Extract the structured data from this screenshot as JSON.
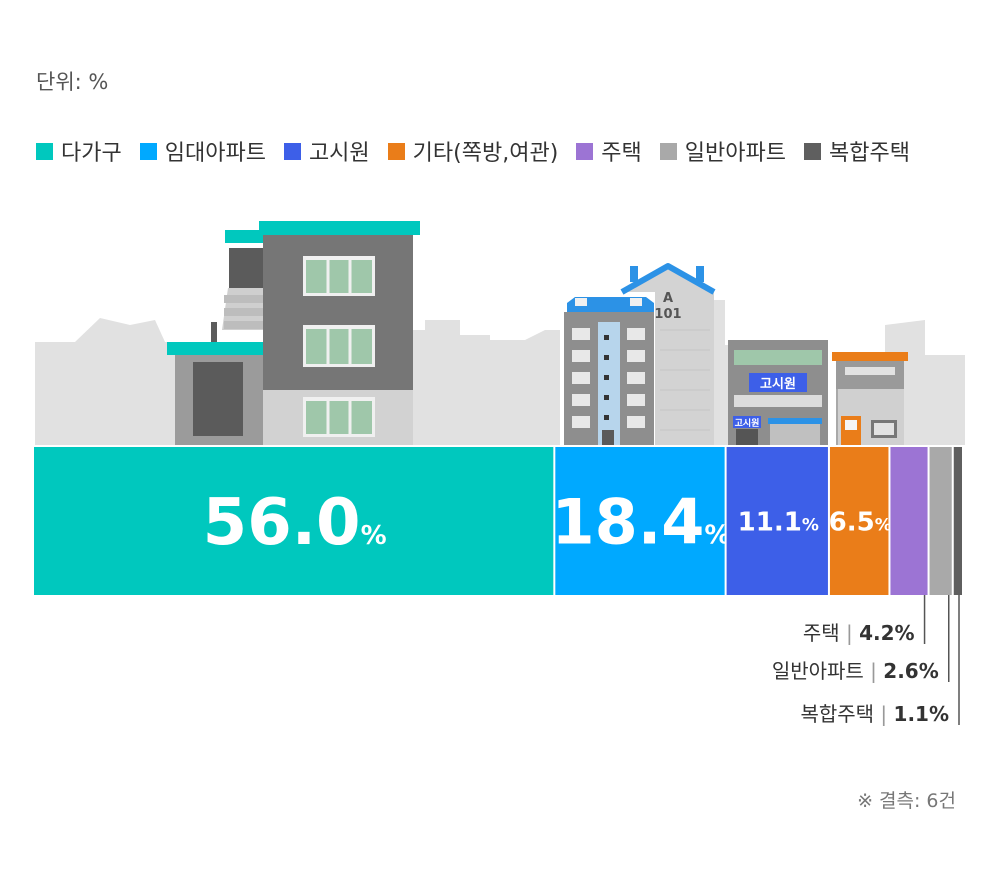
{
  "unit_label": "단위: %",
  "note": "※ 결측: 6건",
  "chart_data": {
    "type": "bar",
    "orientation": "horizontal-stacked",
    "categories": [
      "다가구",
      "임대아파트",
      "고시원",
      "기타(쪽방,여관)",
      "주택",
      "일반아파트",
      "복합주택"
    ],
    "values": [
      56.0,
      18.4,
      11.1,
      6.5,
      4.2,
      2.6,
      1.1
    ],
    "value_labels": [
      "56.0",
      "18.4",
      "11.1",
      "6.5",
      "4.2%",
      "2.6%",
      "1.1%"
    ],
    "percent_sign": "%",
    "colors": [
      "#00c8be",
      "#00a9ff",
      "#3d5fe8",
      "#ea7d19",
      "#9c74d4",
      "#a9a9a9",
      "#5f5f5f"
    ],
    "legend_position": "top",
    "building_signs": {
      "apartment_letter": "A",
      "apartment_number": "101",
      "gosiwon_sign": "고시원",
      "gosiwon_small_sign": "고시원"
    }
  }
}
